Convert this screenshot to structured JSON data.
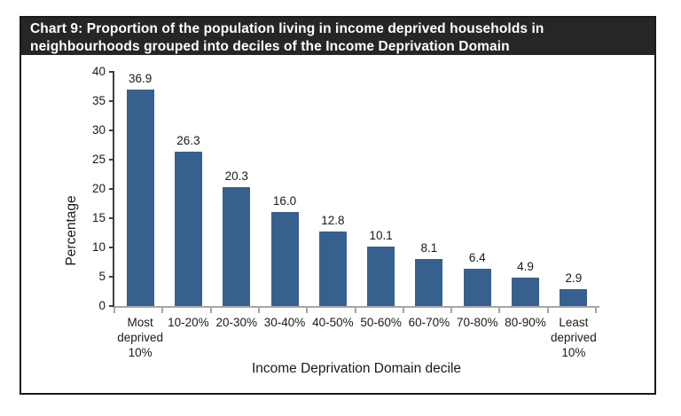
{
  "header": {
    "title_lines": [
      "Chart 9: Proportion of the population living in income deprived households in",
      "neighbourhoods grouped into deciles of the Income Deprivation Domain"
    ],
    "bg_color": "#262626",
    "text_color": "#ffffff"
  },
  "chart_data": {
    "type": "bar",
    "title": "Chart 9: Proportion of the population living in income deprived households in neighbourhoods grouped into deciles of the Income Deprivation Domain",
    "categories": [
      "Most deprived 10%",
      "10-20%",
      "20-30%",
      "30-40%",
      "40-50%",
      "50-60%",
      "60-70%",
      "70-80%",
      "80-90%",
      "Least deprived 10%"
    ],
    "values": [
      36.9,
      26.3,
      20.3,
      16.0,
      12.8,
      10.1,
      8.1,
      6.4,
      4.9,
      2.9
    ],
    "value_labels": [
      "36.9",
      "26.3",
      "20.3",
      "16.0",
      "12.8",
      "10.1",
      "8.1",
      "6.4",
      "4.9",
      "2.9"
    ],
    "xlabel": "Income Deprivation Domain decile",
    "ylabel": "Percentage",
    "ylim": [
      0,
      40
    ],
    "y_ticks": [
      0,
      5,
      10,
      15,
      20,
      25,
      30,
      35,
      40
    ],
    "grid": "off",
    "legend": "none",
    "bar_color": "#36618F",
    "axis_colors": {
      "y_axis": "#404040",
      "x_axis": "#A6A6A6"
    }
  }
}
